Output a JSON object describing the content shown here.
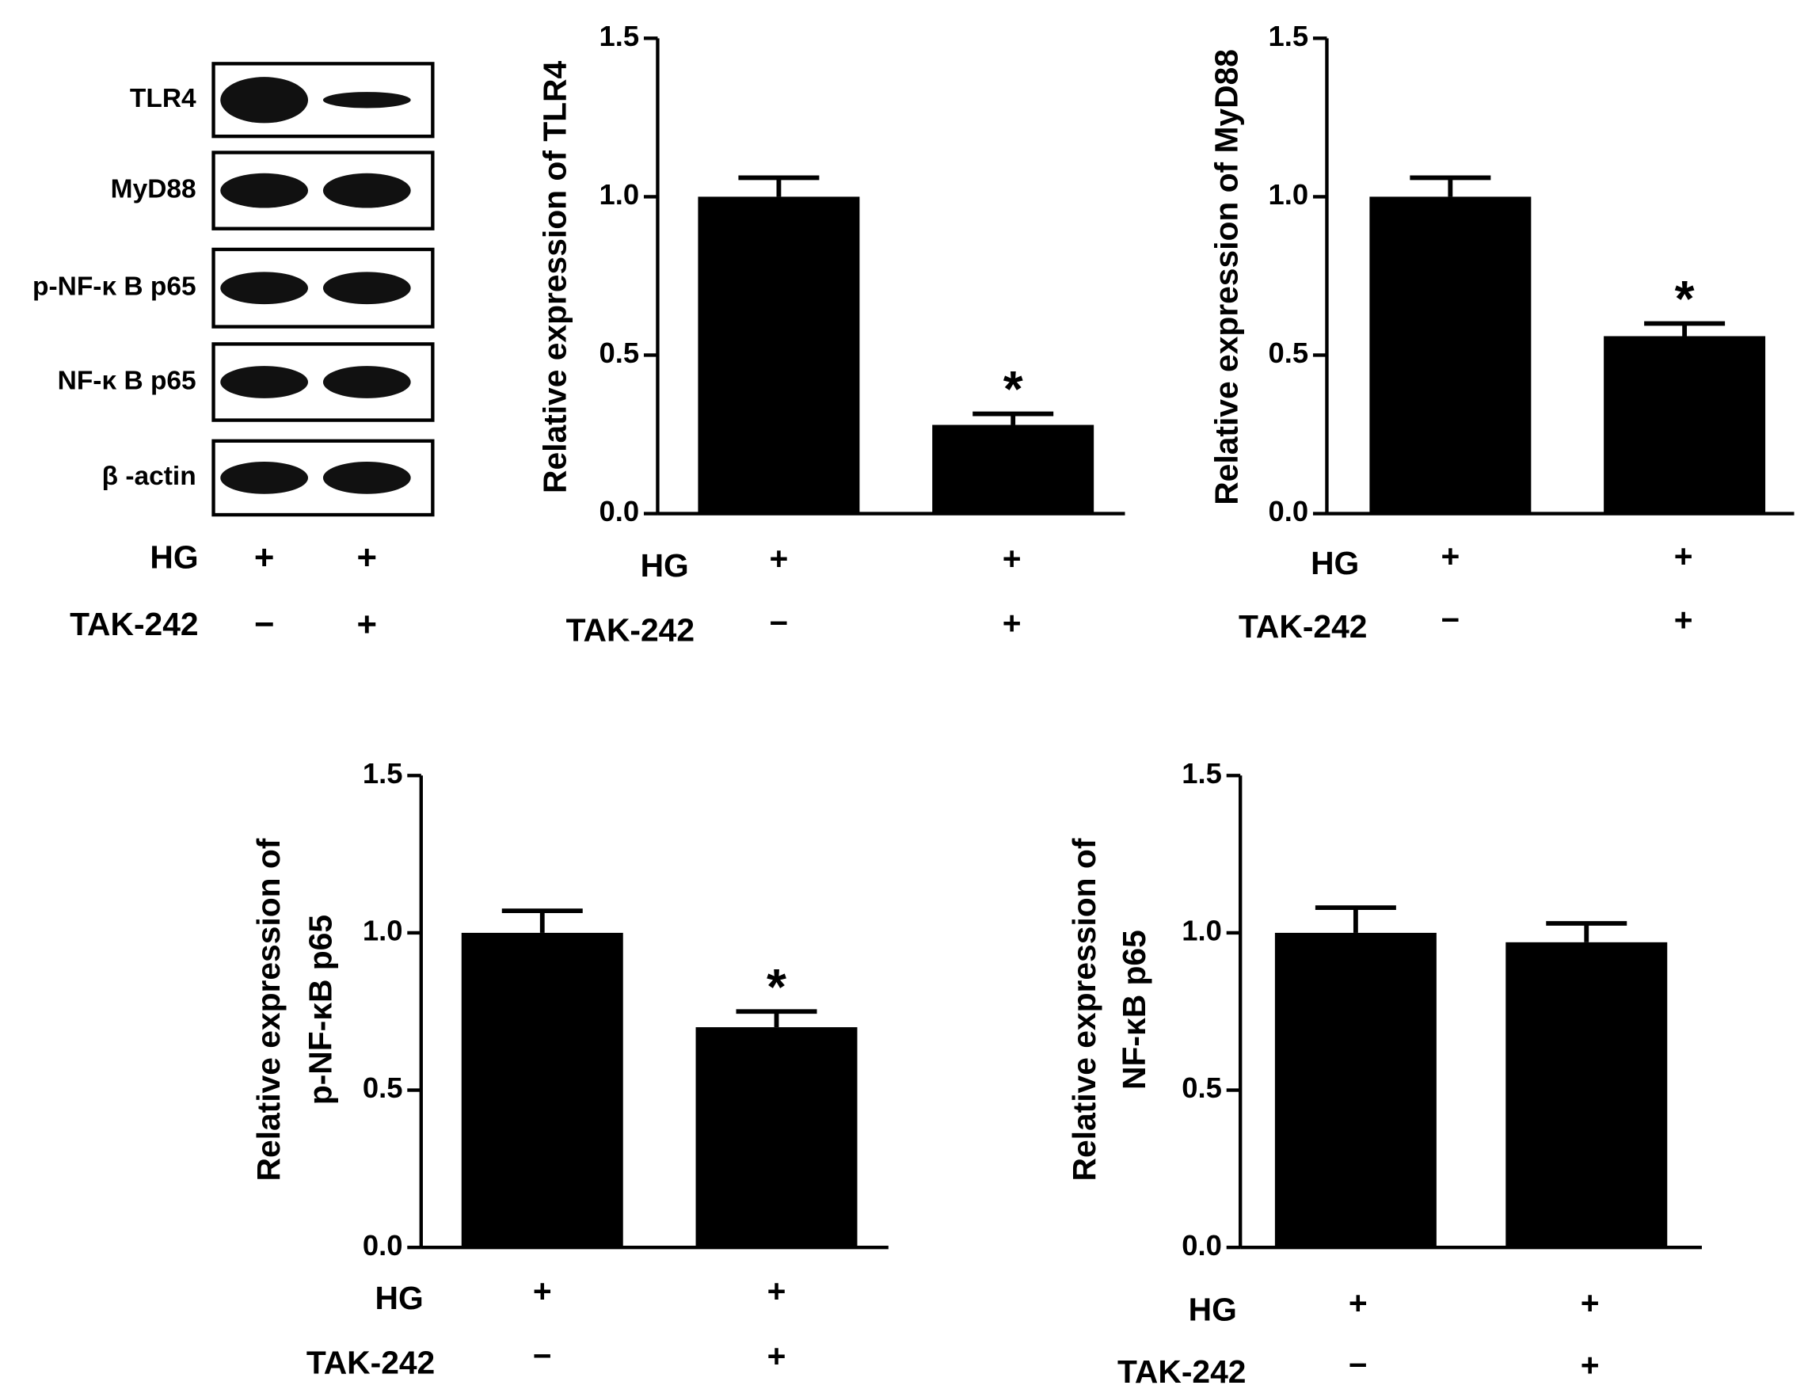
{
  "blot": {
    "bands": [
      "TLR4",
      "MyD88",
      "p-NF-κ B p65",
      "NF-κ B p65",
      "β -actin"
    ],
    "conditions": [
      {
        "name": "HG",
        "values": [
          "+",
          "+"
        ]
      },
      {
        "name": "TAK-242",
        "values": [
          "−",
          "+"
        ]
      }
    ]
  },
  "chart_data": [
    {
      "type": "bar",
      "ylabel": [
        "Relative expression of TLR4"
      ],
      "values": [
        1.0,
        0.28
      ],
      "errors": [
        0.06,
        0.035
      ],
      "annotations": [
        null,
        "*"
      ],
      "color": "#000000",
      "ylim": [
        0,
        1.5
      ],
      "yticks": [
        {
          "value": 0,
          "label": "0.0"
        },
        0.5,
        {
          "value": 1,
          "label": "1.0"
        },
        1.5
      ],
      "conditions": [
        {
          "name": "HG",
          "values": [
            "+",
            "+"
          ]
        },
        {
          "name": "TAK-242",
          "values": [
            "−",
            "+"
          ]
        }
      ]
    },
    {
      "type": "bar",
      "ylabel": [
        "Relative expression of MyD88"
      ],
      "values": [
        1.0,
        0.56
      ],
      "errors": [
        0.06,
        0.04
      ],
      "annotations": [
        null,
        "*"
      ],
      "color": "#000000",
      "ylim": [
        0,
        1.5
      ],
      "yticks": [
        {
          "value": 0,
          "label": "0.0"
        },
        0.5,
        {
          "value": 1,
          "label": "1.0"
        },
        1.5
      ],
      "conditions": [
        {
          "name": "HG",
          "values": [
            "+",
            "+"
          ]
        },
        {
          "name": "TAK-242",
          "values": [
            "−",
            "+"
          ]
        }
      ]
    },
    {
      "type": "bar",
      "ylabel": [
        "Relative expression of",
        "p-NF-κB p65"
      ],
      "values": [
        1.0,
        0.7
      ],
      "errors": [
        0.07,
        0.05
      ],
      "annotations": [
        null,
        "*"
      ],
      "color": "#000000",
      "ylim": [
        0,
        1.5
      ],
      "yticks": [
        {
          "value": 0,
          "label": "0.0"
        },
        0.5,
        {
          "value": 1,
          "label": "1.0"
        },
        1.5
      ],
      "conditions": [
        {
          "name": "HG",
          "values": [
            "+",
            "+"
          ]
        },
        {
          "name": "TAK-242",
          "values": [
            "−",
            "+"
          ]
        }
      ]
    },
    {
      "type": "bar",
      "ylabel": [
        "Relative expression of",
        "NF-κB p65"
      ],
      "values": [
        1.0,
        0.97
      ],
      "errors": [
        0.08,
        0.06
      ],
      "color": "#000000",
      "ylim": [
        0,
        1.5
      ],
      "yticks": [
        {
          "value": 0,
          "label": "0.0"
        },
        0.5,
        {
          "value": 1,
          "label": "1.0"
        },
        1.5
      ],
      "conditions": [
        {
          "name": "HG",
          "values": [
            "+",
            "+"
          ]
        },
        {
          "name": "TAK-242",
          "values": [
            "−",
            "+"
          ]
        }
      ]
    }
  ]
}
